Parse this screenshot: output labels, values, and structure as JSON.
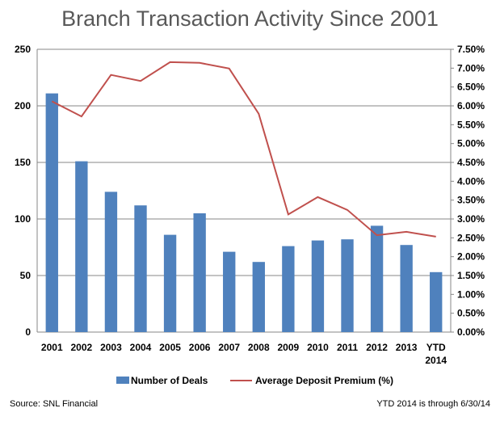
{
  "chart_data": {
    "type": "bar",
    "title": "Branch Transaction Activity Since 2001",
    "categories": [
      "2001",
      "2002",
      "2003",
      "2004",
      "2005",
      "2006",
      "2007",
      "2008",
      "2009",
      "2010",
      "2011",
      "2012",
      "2013",
      "YTD 2014"
    ],
    "series": [
      {
        "name": "Number of Deals",
        "type": "bar",
        "axis": "left",
        "color": "#4F81BD",
        "values": [
          211,
          151,
          124,
          112,
          86,
          105,
          71,
          62,
          76,
          81,
          82,
          94,
          77,
          53
        ]
      },
      {
        "name": "Average Deposit Premium (%)",
        "type": "line",
        "axis": "right",
        "color": "#C0504D",
        "values": [
          6.12,
          5.72,
          6.82,
          6.66,
          7.16,
          7.14,
          6.99,
          5.79,
          3.12,
          3.58,
          3.24,
          2.57,
          2.66,
          2.53
        ]
      }
    ],
    "y_left": {
      "min": 0,
      "max": 250,
      "ticks": [
        "0",
        "50",
        "100",
        "150",
        "200",
        "250"
      ]
    },
    "y_right": {
      "min": 0,
      "max": 7.5,
      "ticks": [
        "0.00%",
        "0.50%",
        "1.00%",
        "1.50%",
        "2.00%",
        "2.50%",
        "3.00%",
        "3.50%",
        "4.00%",
        "4.50%",
        "5.00%",
        "5.50%",
        "6.00%",
        "6.50%",
        "7.00%",
        "7.50%"
      ]
    },
    "grid": true,
    "legend": "bottom"
  },
  "source": "Source: SNL Financial",
  "footnote": "YTD 2014 is through 6/30/14"
}
